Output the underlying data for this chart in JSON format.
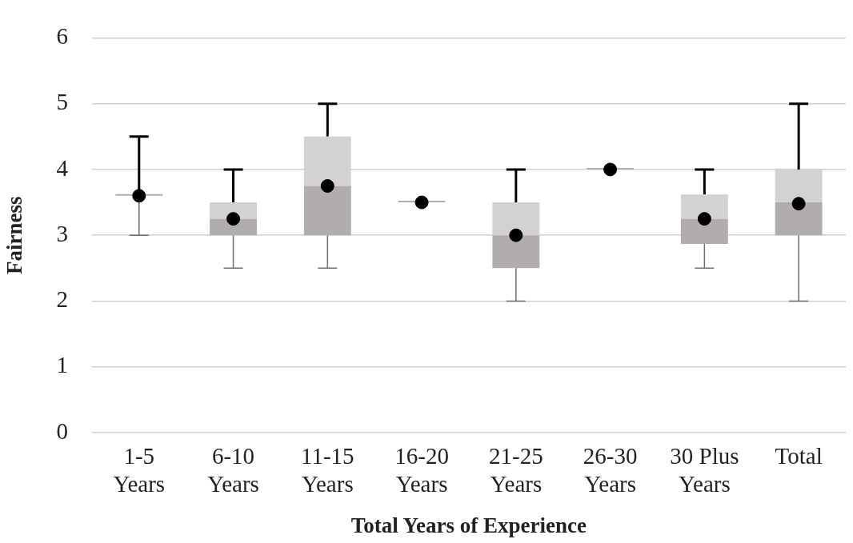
{
  "chart_data": {
    "type": "box",
    "xlabel": "Total Years of Experience",
    "ylabel": "Fairness",
    "categories": [
      "1-5 Years",
      "6-10 Years",
      "11-15 Years",
      "16-20 Years",
      "21-25 Years",
      "26-30 Years",
      "30 Plus Years",
      "Total"
    ],
    "ylim": [
      0,
      6
    ],
    "yticks": [
      0,
      1,
      2,
      3,
      4,
      5,
      6
    ],
    "grid": "y",
    "legend": false,
    "series": [
      {
        "color": "#b0adac",
        "boxes": [
          {
            "low": 3,
            "q1": 3.6,
            "median": 3.6,
            "q3": 3.6,
            "high": 4.5,
            "mean": 3.6
          },
          {
            "low": 2.5,
            "q1": 3,
            "median": 3.25,
            "q3": 3.5,
            "high": 4,
            "mean": 3.25
          },
          {
            "low": 2.5,
            "q1": 3,
            "median": 3.75,
            "q3": 4.5,
            "high": 5,
            "mean": 3.75
          },
          {
            "low": 3.5,
            "q1": 3.5,
            "median": 3.5,
            "q3": 3.5,
            "high": 3.5,
            "mean": 3.5
          },
          {
            "low": 2,
            "q1": 2.5,
            "median": 3,
            "q3": 3.5,
            "high": 4,
            "mean": 3
          },
          {
            "low": 4,
            "q1": 4,
            "median": 4,
            "q3": 4,
            "high": 4,
            "mean": 4
          },
          {
            "low": 2.5,
            "q1": 2.87,
            "median": 3.25,
            "q3": 3.62,
            "high": 4,
            "mean": 3.25
          },
          {
            "low": 2,
            "q1": 3,
            "median": 3.5,
            "q3": 4,
            "high": 5,
            "mean": 3.48
          }
        ]
      }
    ]
  }
}
